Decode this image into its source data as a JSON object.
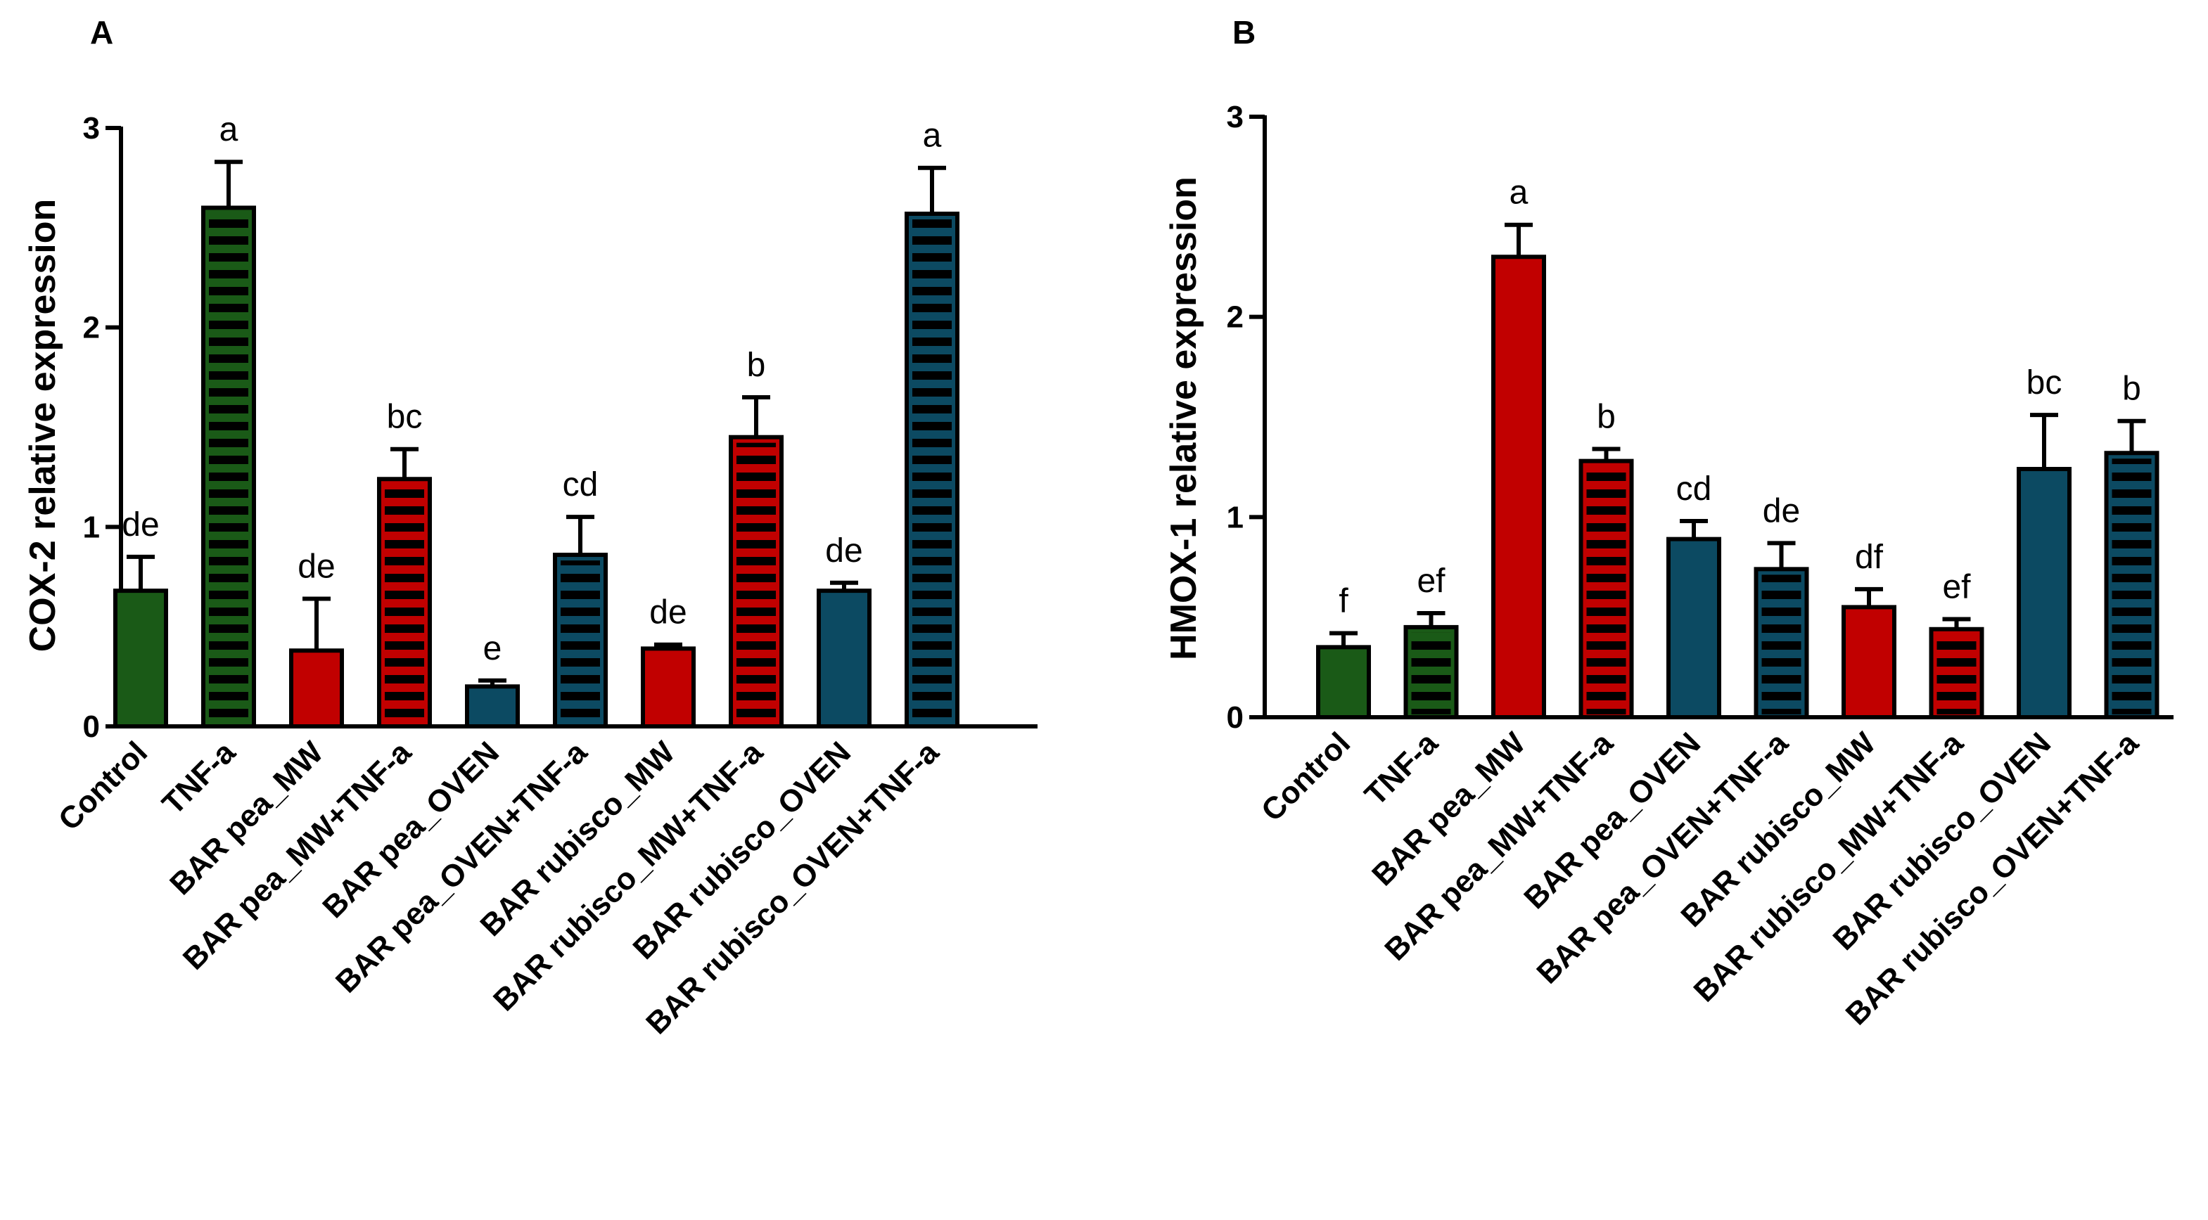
{
  "colors": {
    "Control": "#1a5a17",
    "TNF": "#1a5a17",
    "pea": "#c10000",
    "rubisco": "#0c4a62",
    "stripe": "#000000",
    "axis": "#000000"
  },
  "chart_data": [
    {
      "type": "bar",
      "panel": "A",
      "ylabel": "COX-2 relative expression",
      "ylim": [
        0,
        3
      ],
      "yticks": [
        "0",
        "1",
        "2",
        "3"
      ],
      "categories": [
        "Control",
        "TNF-a",
        "BAR pea_MW",
        "BAR pea_MW+TNF-a",
        "BAR pea_OVEN",
        "BAR pea_OVEN+TNF-a",
        "BAR rubisco_MW",
        "BAR rubisco_MW+TNF-a",
        "BAR rubisco_OVEN",
        "BAR rubisco_OVEN+TNF-a"
      ],
      "values": [
        0.68,
        2.6,
        0.38,
        1.24,
        0.2,
        0.86,
        0.39,
        1.45,
        0.68,
        2.57
      ],
      "errors": [
        0.17,
        0.23,
        0.26,
        0.15,
        0.03,
        0.19,
        0.02,
        0.2,
        0.04,
        0.23
      ],
      "groups": [
        "Control",
        "TNF",
        "pea",
        "pea",
        "rubisco",
        "rubisco",
        "pea",
        "pea",
        "rubisco",
        "rubisco"
      ],
      "striped": [
        false,
        true,
        false,
        true,
        false,
        true,
        false,
        true,
        false,
        true
      ],
      "significance": [
        "de",
        "a",
        "de",
        "bc",
        "e",
        "cd",
        "de",
        "b",
        "de",
        "a"
      ]
    },
    {
      "type": "bar",
      "panel": "B",
      "ylabel": "HMOX-1 relative expression",
      "ylim": [
        0,
        3
      ],
      "yticks": [
        "0",
        "1",
        "2",
        "3"
      ],
      "categories": [
        "Control",
        "TNF-a",
        "BAR pea_MW",
        "BAR pea_MW+TNF-a",
        "BAR pea_OVEN",
        "BAR pea_OVEN+TNF-a",
        "BAR rubisco_MW",
        "BAR rubisco_MW+TNF-a",
        "BAR rubisco_OVEN",
        "BAR rubisco_OVEN+TNF-a"
      ],
      "values": [
        0.35,
        0.45,
        2.3,
        1.28,
        0.89,
        0.74,
        0.55,
        0.44,
        1.24,
        1.32
      ],
      "errors": [
        0.07,
        0.07,
        0.16,
        0.06,
        0.09,
        0.13,
        0.09,
        0.05,
        0.27,
        0.16
      ],
      "groups": [
        "Control",
        "TNF",
        "pea",
        "pea",
        "rubisco",
        "rubisco",
        "pea",
        "pea",
        "rubisco",
        "rubisco"
      ],
      "striped": [
        false,
        true,
        false,
        true,
        false,
        true,
        false,
        true,
        false,
        true
      ],
      "significance": [
        "f",
        "ef",
        "a",
        "b",
        "cd",
        "de",
        "df",
        "ef",
        "bc",
        "b"
      ]
    }
  ]
}
